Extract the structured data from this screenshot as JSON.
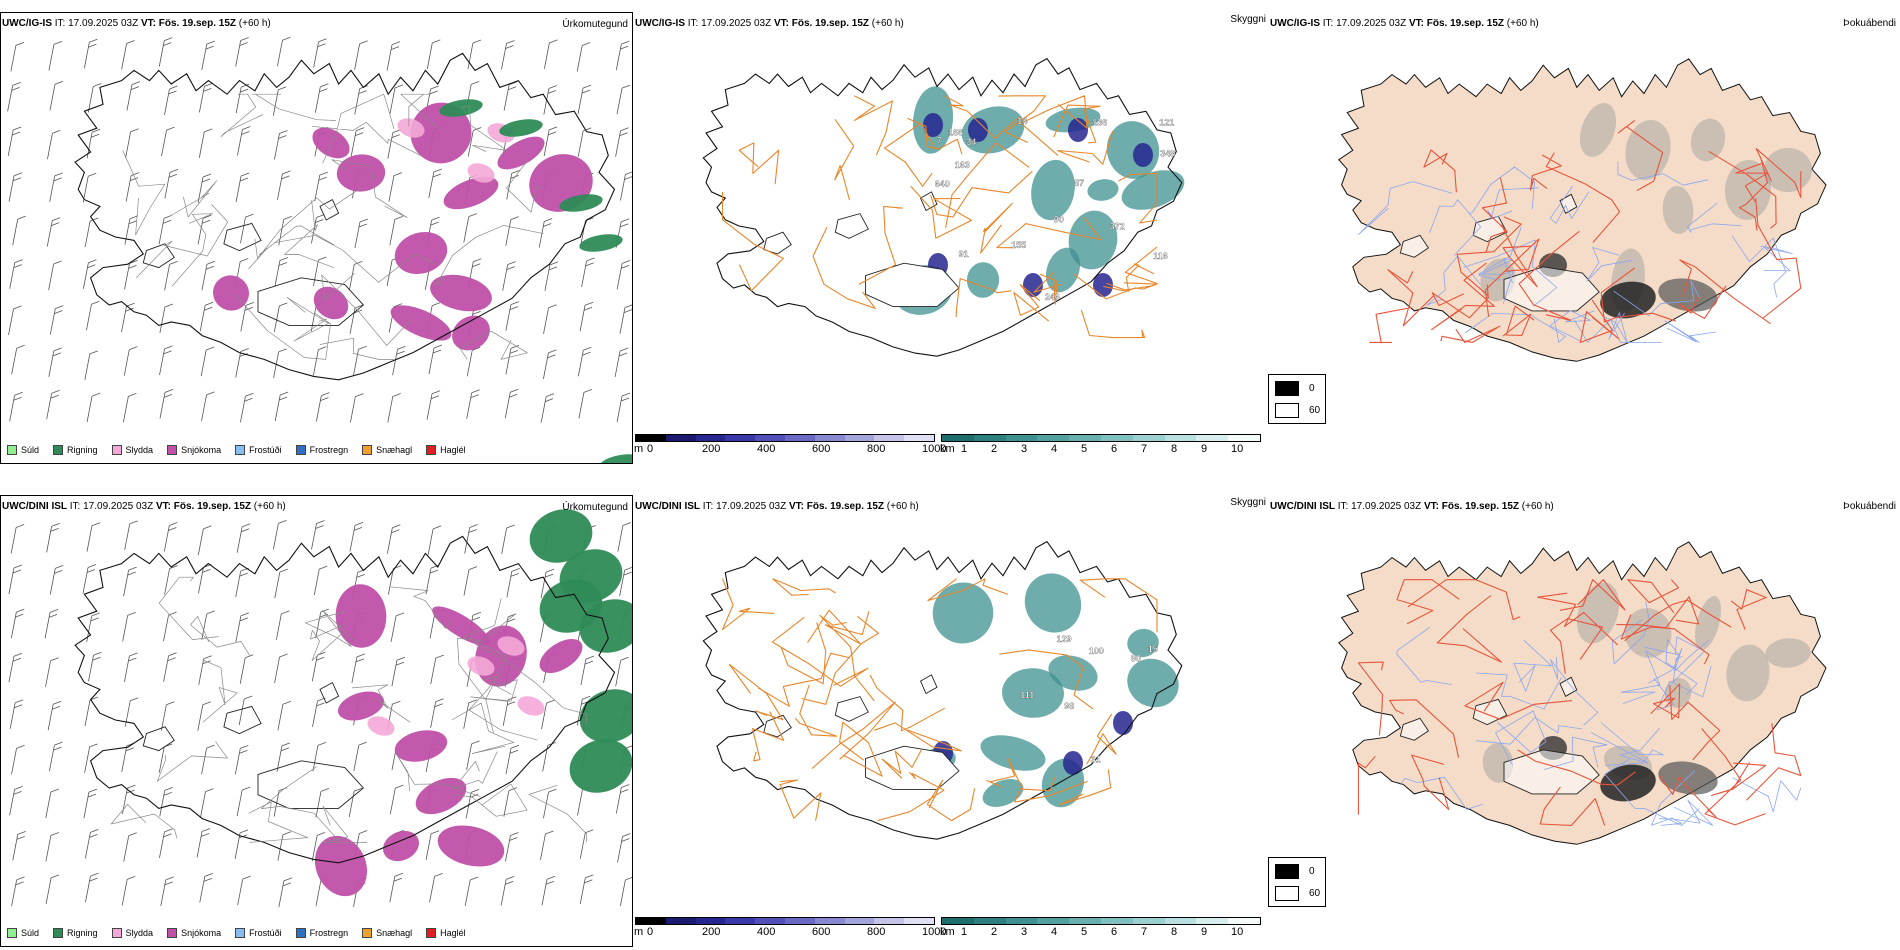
{
  "rows": [
    {
      "model_bold": "UWC/IG-IS",
      "it_text": " IT: 17.09.2025 03Z ",
      "vt_bold": "VT: Fös. 19.sep. 15Z",
      "lead": " (+60 h)"
    },
    {
      "model_bold": "UWC/DINI ISL",
      "it_text": " IT: 17.09.2025 03Z ",
      "vt_bold": "VT: Fös. 19.sep. 15Z",
      "lead": " (+60 h)"
    }
  ],
  "panel_titles": {
    "precip": "Úrkomutegund",
    "cloud": "Skyggni",
    "fog": "Þokuábendi"
  },
  "precip_legend": [
    {
      "label": "Súld",
      "color": "#90ee90"
    },
    {
      "label": "Rigning",
      "color": "#2e8b57"
    },
    {
      "label": "Slydda",
      "color": "#f4a8d8"
    },
    {
      "label": "Snjókoma",
      "color": "#c050a8"
    },
    {
      "label": "Frostúði",
      "color": "#87bdf0"
    },
    {
      "label": "Frostregn",
      "color": "#3070c0"
    },
    {
      "label": "Snæhagl",
      "color": "#f0a030"
    },
    {
      "label": "Haglél",
      "color": "#e02020"
    }
  ],
  "cloud_base_bar": {
    "unit": "m",
    "ticks": [
      "0",
      "200",
      "400",
      "600",
      "800",
      "1000"
    ],
    "colors": [
      "#000000",
      "#1a1a6e",
      "#262690",
      "#3838a8",
      "#5050b8",
      "#6a6ac4",
      "#8888d0",
      "#a4a4dc",
      "#c4c4e8",
      "#e0e0f4"
    ]
  },
  "visibility_bar": {
    "unit": "km",
    "ticks": [
      "1",
      "2",
      "3",
      "4",
      "5",
      "6",
      "7",
      "8",
      "9",
      "10"
    ],
    "colors": [
      "#1e6e6e",
      "#2e8080",
      "#3f9090",
      "#52a0a0",
      "#68b0b0",
      "#80c0c0",
      "#9ad0d0",
      "#b8e0e0",
      "#d6eeee",
      "#f4fbfb"
    ]
  },
  "fog_legend": [
    {
      "label": "0",
      "color": "#000000"
    },
    {
      "label": "60",
      "color": "#ffffff"
    }
  ],
  "cloud_labels": [
    [
      "155",
      "166",
      "349",
      "640",
      "372",
      "163",
      "91",
      "7",
      "90",
      "121",
      "34",
      "87",
      "116",
      "246",
      "136",
      "14"
    ],
    [
      "111",
      "90",
      "15",
      "129",
      "98",
      "100",
      "31"
    ]
  ]
}
